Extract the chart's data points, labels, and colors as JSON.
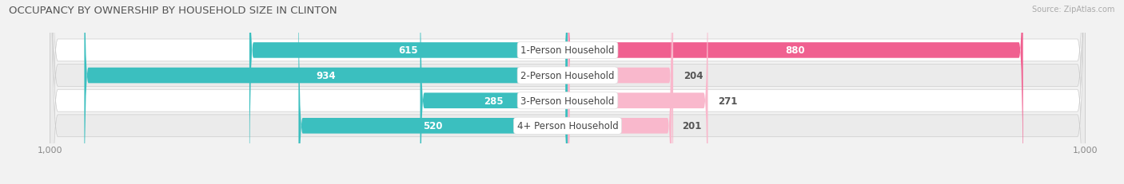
{
  "title": "OCCUPANCY BY OWNERSHIP BY HOUSEHOLD SIZE IN CLINTON",
  "source": "Source: ZipAtlas.com",
  "categories": [
    "1-Person Household",
    "2-Person Household",
    "3-Person Household",
    "4+ Person Household"
  ],
  "owner_values": [
    615,
    934,
    285,
    520
  ],
  "renter_values": [
    880,
    204,
    271,
    201
  ],
  "owner_color": "#3BBFBF",
  "renter_colors": [
    "#F06090",
    "#F9B8CC",
    "#F9B8CC",
    "#F9B8CC"
  ],
  "axis_max": 1000,
  "bg_color": "#f2f2f2",
  "row_colors": [
    "#ffffff",
    "#ebebeb",
    "#ffffff",
    "#ebebeb"
  ],
  "center_label_bg": "#ffffff",
  "bar_height": 0.62,
  "title_fontsize": 9.5,
  "bar_label_fontsize": 8.5,
  "axis_label_fontsize": 8,
  "legend_fontsize": 8.5,
  "owner_label_white_threshold": 100,
  "renter_label_white_threshold": 400
}
